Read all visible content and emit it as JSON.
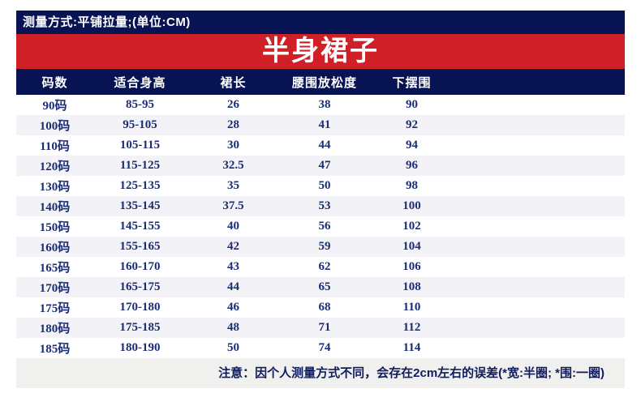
{
  "header_bar": {
    "text": "测量方式:平铺拉量;(单位:CM)"
  },
  "banner": {
    "title": "半身裙子"
  },
  "chart_data": {
    "type": "table",
    "title": "半身裙子",
    "unit_note": "测量方式:平铺拉量;(单位:CM)",
    "columns": [
      "码数",
      "适合身高",
      "裙长",
      "腰围放松度",
      "下摆围"
    ],
    "rows": [
      [
        "90码",
        "85-95",
        "26",
        "38",
        "90"
      ],
      [
        "100码",
        "95-105",
        "28",
        "41",
        "92"
      ],
      [
        "110码",
        "105-115",
        "30",
        "44",
        "94"
      ],
      [
        "120码",
        "115-125",
        "32.5",
        "47",
        "96"
      ],
      [
        "130码",
        "125-135",
        "35",
        "50",
        "98"
      ],
      [
        "140码",
        "135-145",
        "37.5",
        "53",
        "100"
      ],
      [
        "150码",
        "145-155",
        "40",
        "56",
        "102"
      ],
      [
        "160码",
        "155-165",
        "42",
        "59",
        "104"
      ],
      [
        "165码",
        "160-170",
        "43",
        "62",
        "106"
      ],
      [
        "170码",
        "165-175",
        "44",
        "65",
        "108"
      ],
      [
        "175码",
        "170-180",
        "46",
        "68",
        "110"
      ],
      [
        "180码",
        "175-185",
        "48",
        "71",
        "112"
      ],
      [
        "185码",
        "180-190",
        "50",
        "74",
        "114"
      ]
    ],
    "footnote": "注意：因个人测量方式不同，会存在2cm左右的误差(*宽:半圈; *围:一圈)"
  },
  "footer": {
    "note": "注意：因个人测量方式不同，会存在2cm左右的误差(*宽:半圈; *围:一圈)"
  },
  "colors": {
    "navy": "#081353",
    "red": "#d02027",
    "cell_text": "#1b2d74",
    "stripe": "#f2f2f7",
    "note_bg": "#f0f0ee"
  }
}
